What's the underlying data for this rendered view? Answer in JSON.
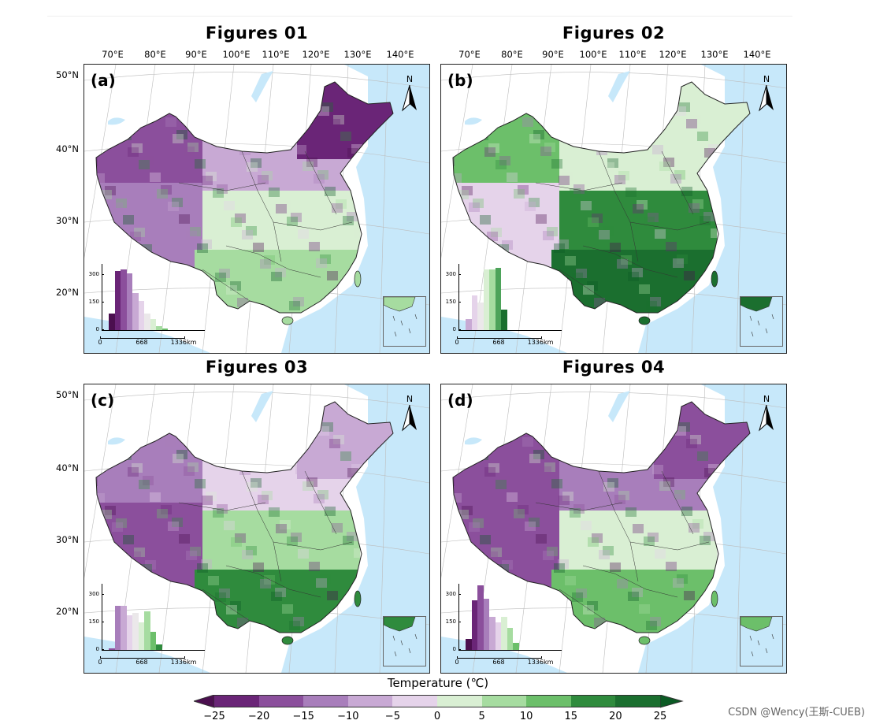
{
  "panels": [
    {
      "title": "Figures 01",
      "letter": "(a)",
      "hist": [
        {
          "c": "#4b0f4f",
          "v": 90
        },
        {
          "c": "#6a2577",
          "v": 320
        },
        {
          "c": "#8b4f9c",
          "v": 330
        },
        {
          "c": "#a87ebb",
          "v": 310
        },
        {
          "c": "#c8a9d4",
          "v": 200
        },
        {
          "c": "#e5d3ea",
          "v": 160
        },
        {
          "c": "#ebe8ea",
          "v": 90
        },
        {
          "c": "#d9efd3",
          "v": 60
        },
        {
          "c": "#a6dca0",
          "v": 20
        },
        {
          "c": "#6cbf6a",
          "v": 10
        }
      ]
    },
    {
      "title": "Figures 02",
      "letter": "(b)",
      "hist": [
        {
          "c": "#c8a9d4",
          "v": 60
        },
        {
          "c": "#e5d3ea",
          "v": 190
        },
        {
          "c": "#ebe8ea",
          "v": 150
        },
        {
          "c": "#d9efd3",
          "v": 330
        },
        {
          "c": "#a6dca0",
          "v": 330
        },
        {
          "c": "#4da35a",
          "v": 340
        },
        {
          "c": "#1b6f2f",
          "v": 110
        }
      ]
    },
    {
      "title": "Figures 03",
      "letter": "(c)",
      "hist": [
        {
          "c": "#8b4f9c",
          "v": 10
        },
        {
          "c": "#a87ebb",
          "v": 240
        },
        {
          "c": "#c8a9d4",
          "v": 240
        },
        {
          "c": "#e5d3ea",
          "v": 190
        },
        {
          "c": "#ebe8ea",
          "v": 200
        },
        {
          "c": "#d9efd3",
          "v": 150
        },
        {
          "c": "#a6dca0",
          "v": 210
        },
        {
          "c": "#6cbf6a",
          "v": 100
        },
        {
          "c": "#2f8b3d",
          "v": 30
        }
      ]
    },
    {
      "title": "Figures 04",
      "letter": "(d)",
      "hist": [
        {
          "c": "#4b0f4f",
          "v": 60
        },
        {
          "c": "#6a2577",
          "v": 270
        },
        {
          "c": "#8b4f9c",
          "v": 350
        },
        {
          "c": "#a87ebb",
          "v": 280
        },
        {
          "c": "#c8a9d4",
          "v": 180
        },
        {
          "c": "#e5d3ea",
          "v": 150
        },
        {
          "c": "#d9efd3",
          "v": 180
        },
        {
          "c": "#a6dca0",
          "v": 120
        },
        {
          "c": "#6cbf6a",
          "v": 40
        }
      ]
    }
  ],
  "lon_labels": [
    "70°E",
    "80°E",
    "90°E",
    "100°E",
    "110°E",
    "120°E",
    "130°E",
    "140°E"
  ],
  "lat_labels": [
    "50°N",
    "40°N",
    "30°N",
    "20°N"
  ],
  "north_label": "N",
  "hist_y_ticks": [
    "300",
    "150",
    "0"
  ],
  "scale_labels": [
    "0",
    "668",
    "1336km"
  ],
  "colorbar": {
    "label": "Temperature (℃)",
    "ticks": [
      "−25",
      "−20",
      "−15",
      "−10",
      "−5",
      "0",
      "5",
      "10",
      "15",
      "20",
      "25"
    ],
    "colors": [
      "#4b0f4f",
      "#6a2577",
      "#8b4f9c",
      "#a87ebb",
      "#c8a9d4",
      "#e5d3ea",
      "#d9efd3",
      "#a6dca0",
      "#6cbf6a",
      "#2f8b3d",
      "#1b6f2f",
      "#0b5a24"
    ]
  },
  "watermark": "CSDN @Wency(王斯-CUEB)"
}
